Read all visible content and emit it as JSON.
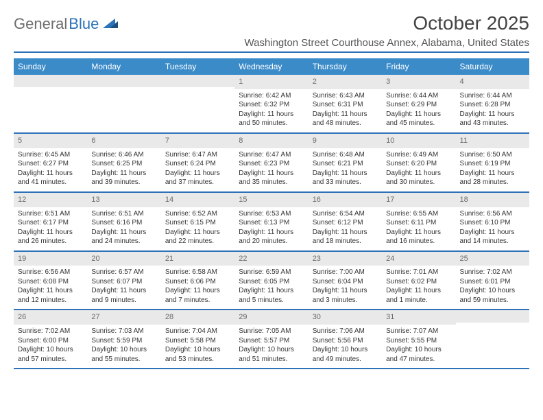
{
  "logo": {
    "part1": "General",
    "part2": "Blue"
  },
  "title": "October 2025",
  "location": "Washington Street Courthouse Annex, Alabama, United States",
  "colors": {
    "accent": "#2d72b8",
    "header_bg": "#3b8bc9",
    "day_num_bg": "#e9e9e9",
    "text": "#333333",
    "muted": "#6d6d6d"
  },
  "day_names": [
    "Sunday",
    "Monday",
    "Tuesday",
    "Wednesday",
    "Thursday",
    "Friday",
    "Saturday"
  ],
  "weeks": [
    [
      {
        "n": "",
        "l": []
      },
      {
        "n": "",
        "l": []
      },
      {
        "n": "",
        "l": []
      },
      {
        "n": "1",
        "l": [
          "Sunrise: 6:42 AM",
          "Sunset: 6:32 PM",
          "Daylight: 11 hours and 50 minutes."
        ]
      },
      {
        "n": "2",
        "l": [
          "Sunrise: 6:43 AM",
          "Sunset: 6:31 PM",
          "Daylight: 11 hours and 48 minutes."
        ]
      },
      {
        "n": "3",
        "l": [
          "Sunrise: 6:44 AM",
          "Sunset: 6:29 PM",
          "Daylight: 11 hours and 45 minutes."
        ]
      },
      {
        "n": "4",
        "l": [
          "Sunrise: 6:44 AM",
          "Sunset: 6:28 PM",
          "Daylight: 11 hours and 43 minutes."
        ]
      }
    ],
    [
      {
        "n": "5",
        "l": [
          "Sunrise: 6:45 AM",
          "Sunset: 6:27 PM",
          "Daylight: 11 hours and 41 minutes."
        ]
      },
      {
        "n": "6",
        "l": [
          "Sunrise: 6:46 AM",
          "Sunset: 6:25 PM",
          "Daylight: 11 hours and 39 minutes."
        ]
      },
      {
        "n": "7",
        "l": [
          "Sunrise: 6:47 AM",
          "Sunset: 6:24 PM",
          "Daylight: 11 hours and 37 minutes."
        ]
      },
      {
        "n": "8",
        "l": [
          "Sunrise: 6:47 AM",
          "Sunset: 6:23 PM",
          "Daylight: 11 hours and 35 minutes."
        ]
      },
      {
        "n": "9",
        "l": [
          "Sunrise: 6:48 AM",
          "Sunset: 6:21 PM",
          "Daylight: 11 hours and 33 minutes."
        ]
      },
      {
        "n": "10",
        "l": [
          "Sunrise: 6:49 AM",
          "Sunset: 6:20 PM",
          "Daylight: 11 hours and 30 minutes."
        ]
      },
      {
        "n": "11",
        "l": [
          "Sunrise: 6:50 AM",
          "Sunset: 6:19 PM",
          "Daylight: 11 hours and 28 minutes."
        ]
      }
    ],
    [
      {
        "n": "12",
        "l": [
          "Sunrise: 6:51 AM",
          "Sunset: 6:17 PM",
          "Daylight: 11 hours and 26 minutes."
        ]
      },
      {
        "n": "13",
        "l": [
          "Sunrise: 6:51 AM",
          "Sunset: 6:16 PM",
          "Daylight: 11 hours and 24 minutes."
        ]
      },
      {
        "n": "14",
        "l": [
          "Sunrise: 6:52 AM",
          "Sunset: 6:15 PM",
          "Daylight: 11 hours and 22 minutes."
        ]
      },
      {
        "n": "15",
        "l": [
          "Sunrise: 6:53 AM",
          "Sunset: 6:13 PM",
          "Daylight: 11 hours and 20 minutes."
        ]
      },
      {
        "n": "16",
        "l": [
          "Sunrise: 6:54 AM",
          "Sunset: 6:12 PM",
          "Daylight: 11 hours and 18 minutes."
        ]
      },
      {
        "n": "17",
        "l": [
          "Sunrise: 6:55 AM",
          "Sunset: 6:11 PM",
          "Daylight: 11 hours and 16 minutes."
        ]
      },
      {
        "n": "18",
        "l": [
          "Sunrise: 6:56 AM",
          "Sunset: 6:10 PM",
          "Daylight: 11 hours and 14 minutes."
        ]
      }
    ],
    [
      {
        "n": "19",
        "l": [
          "Sunrise: 6:56 AM",
          "Sunset: 6:08 PM",
          "Daylight: 11 hours and 12 minutes."
        ]
      },
      {
        "n": "20",
        "l": [
          "Sunrise: 6:57 AM",
          "Sunset: 6:07 PM",
          "Daylight: 11 hours and 9 minutes."
        ]
      },
      {
        "n": "21",
        "l": [
          "Sunrise: 6:58 AM",
          "Sunset: 6:06 PM",
          "Daylight: 11 hours and 7 minutes."
        ]
      },
      {
        "n": "22",
        "l": [
          "Sunrise: 6:59 AM",
          "Sunset: 6:05 PM",
          "Daylight: 11 hours and 5 minutes."
        ]
      },
      {
        "n": "23",
        "l": [
          "Sunrise: 7:00 AM",
          "Sunset: 6:04 PM",
          "Daylight: 11 hours and 3 minutes."
        ]
      },
      {
        "n": "24",
        "l": [
          "Sunrise: 7:01 AM",
          "Sunset: 6:02 PM",
          "Daylight: 11 hours and 1 minute."
        ]
      },
      {
        "n": "25",
        "l": [
          "Sunrise: 7:02 AM",
          "Sunset: 6:01 PM",
          "Daylight: 10 hours and 59 minutes."
        ]
      }
    ],
    [
      {
        "n": "26",
        "l": [
          "Sunrise: 7:02 AM",
          "Sunset: 6:00 PM",
          "Daylight: 10 hours and 57 minutes."
        ]
      },
      {
        "n": "27",
        "l": [
          "Sunrise: 7:03 AM",
          "Sunset: 5:59 PM",
          "Daylight: 10 hours and 55 minutes."
        ]
      },
      {
        "n": "28",
        "l": [
          "Sunrise: 7:04 AM",
          "Sunset: 5:58 PM",
          "Daylight: 10 hours and 53 minutes."
        ]
      },
      {
        "n": "29",
        "l": [
          "Sunrise: 7:05 AM",
          "Sunset: 5:57 PM",
          "Daylight: 10 hours and 51 minutes."
        ]
      },
      {
        "n": "30",
        "l": [
          "Sunrise: 7:06 AM",
          "Sunset: 5:56 PM",
          "Daylight: 10 hours and 49 minutes."
        ]
      },
      {
        "n": "31",
        "l": [
          "Sunrise: 7:07 AM",
          "Sunset: 5:55 PM",
          "Daylight: 10 hours and 47 minutes."
        ]
      },
      {
        "n": "",
        "l": []
      }
    ]
  ]
}
